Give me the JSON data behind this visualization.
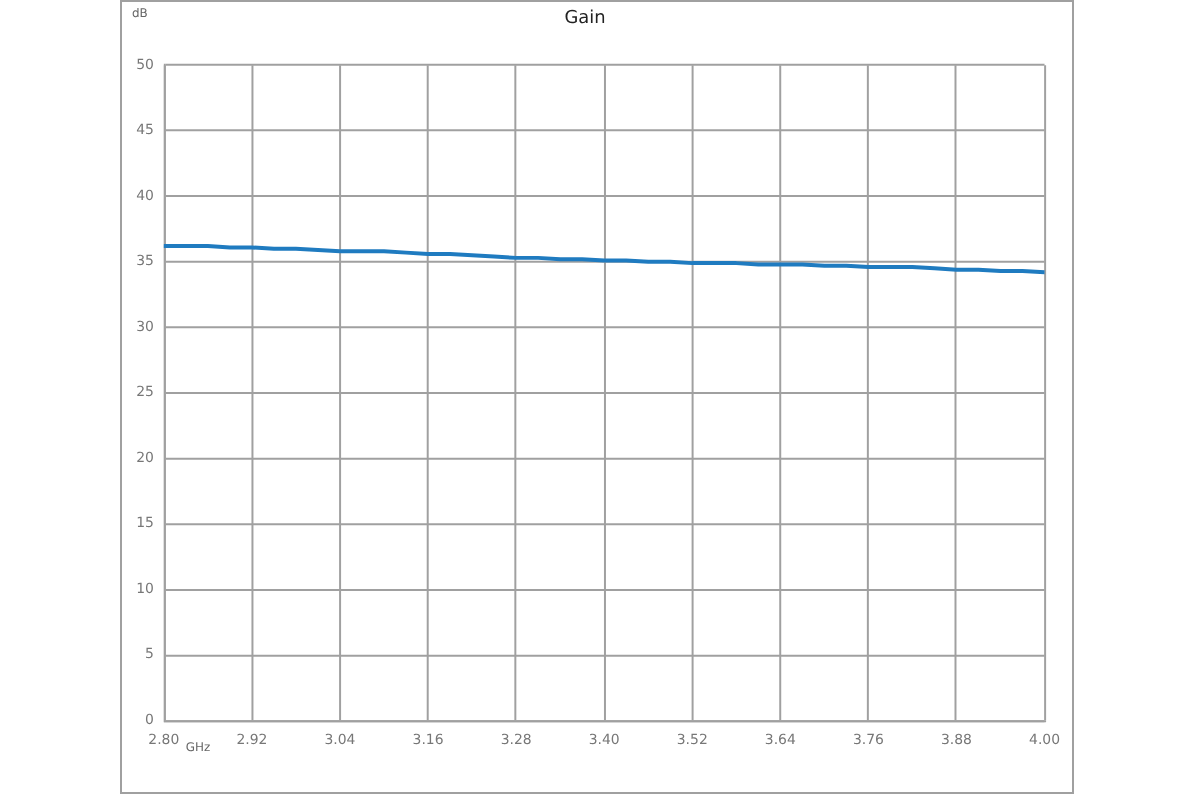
{
  "chart_data": {
    "type": "line",
    "title": "Gain",
    "xlabel": "GHz",
    "ylabel": "dB",
    "x": [
      2.8,
      2.83,
      2.86,
      2.89,
      2.92,
      2.95,
      2.98,
      3.01,
      3.04,
      3.07,
      3.1,
      3.13,
      3.16,
      3.19,
      3.22,
      3.25,
      3.28,
      3.31,
      3.34,
      3.37,
      3.4,
      3.43,
      3.46,
      3.49,
      3.52,
      3.55,
      3.58,
      3.61,
      3.64,
      3.67,
      3.7,
      3.73,
      3.76,
      3.79,
      3.82,
      3.85,
      3.88,
      3.91,
      3.94,
      3.97,
      4.0
    ],
    "series": [
      {
        "color": "#1f7bc0",
        "values": [
          36.2,
          36.2,
          36.2,
          36.1,
          36.1,
          36.0,
          36.0,
          35.9,
          35.8,
          35.8,
          35.8,
          35.7,
          35.6,
          35.6,
          35.5,
          35.4,
          35.3,
          35.3,
          35.2,
          35.2,
          35.1,
          35.1,
          35.0,
          35.0,
          34.9,
          34.9,
          34.9,
          34.8,
          34.8,
          34.8,
          34.7,
          34.7,
          34.6,
          34.6,
          34.6,
          34.5,
          34.4,
          34.4,
          34.3,
          34.3,
          34.2
        ]
      }
    ],
    "xlim": [
      2.8,
      4.0
    ],
    "xticks": [
      {
        "value": 2.8,
        "label": "2.80"
      },
      2.92,
      3.04,
      3.16,
      3.28,
      {
        "value": 3.4,
        "label": "3.40"
      },
      3.52,
      3.64,
      3.76,
      3.88,
      {
        "value": 4.0,
        "label": "4.00"
      }
    ],
    "ylim": [
      0,
      50
    ],
    "yticks": [
      0,
      5,
      10,
      15,
      20,
      25,
      30,
      35,
      40,
      45,
      50
    ],
    "grid": true,
    "marker": "none"
  }
}
